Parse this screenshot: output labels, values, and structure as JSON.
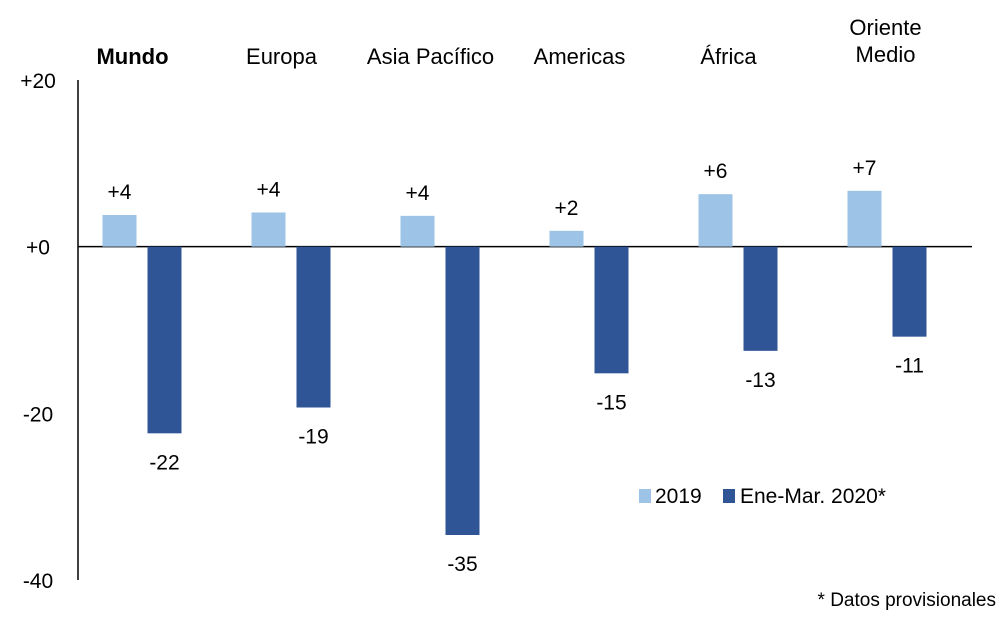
{
  "chart_data": {
    "type": "bar",
    "title": "",
    "xlabel": "",
    "ylabel": "",
    "ylim": [
      -40,
      20
    ],
    "yticks": [
      "+20",
      "+0",
      "-20",
      "-40"
    ],
    "ytick_values": [
      20,
      0,
      -20,
      -40
    ],
    "categories": [
      [
        "Mundo"
      ],
      [
        "Europa"
      ],
      [
        "Asia Pacífico"
      ],
      [
        "Americas"
      ],
      [
        "África"
      ],
      [
        "Oriente",
        "Medio"
      ]
    ],
    "category_bold": [
      true,
      false,
      false,
      false,
      false,
      false
    ],
    "series": [
      {
        "name": "2019",
        "color": "#9dc3e6",
        "values": [
          3.8,
          4.1,
          3.7,
          1.9,
          6.3,
          6.7
        ],
        "labels": [
          "+4",
          "+4",
          "+4",
          "+2",
          "+6",
          "+7"
        ]
      },
      {
        "name": "Ene-Mar. 2020*",
        "color": "#2f5597",
        "values": [
          -22.4,
          -19.3,
          -34.6,
          -15.2,
          -12.5,
          -10.8
        ],
        "labels": [
          "-22",
          "-19",
          "-35",
          "-15",
          "-13",
          "-11"
        ]
      }
    ],
    "legend_position": "bottom-right",
    "grid": false,
    "footnote": "* Datos provisionales"
  }
}
